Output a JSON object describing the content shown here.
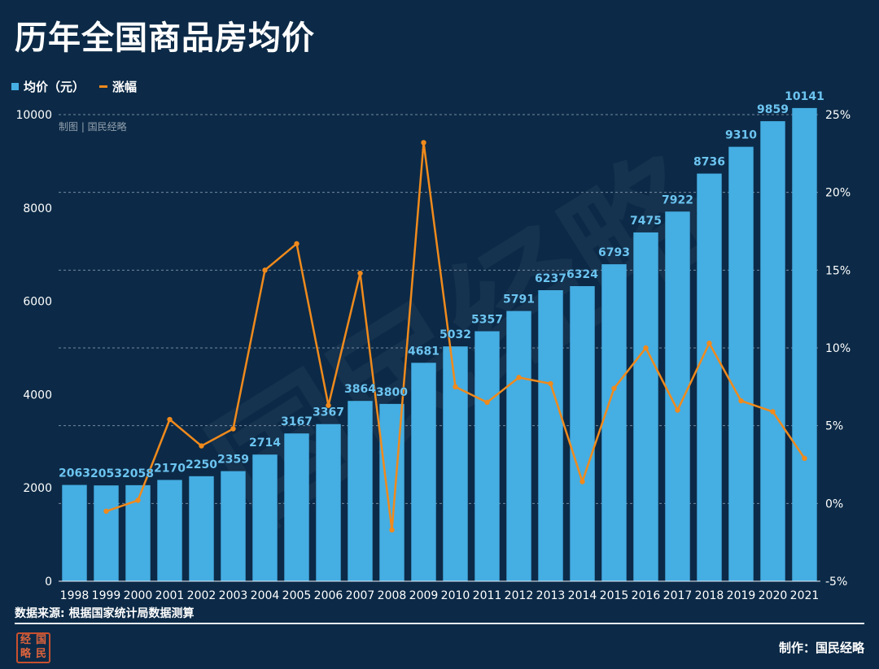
{
  "title": "历年全国商品房均价",
  "legend": {
    "bar_label": "均价（元）",
    "line_label": "涨幅"
  },
  "source": "数据来源: 根据国家统计局数据测算",
  "credit": "制作：国民经略",
  "chart_watermark": "制图 | 国民经略",
  "logo_seal": [
    "经",
    "国",
    "略",
    "民"
  ],
  "colors": {
    "background": "#0c2a47",
    "bar": "#45aee3",
    "line": "#f08a1c",
    "label": "#6cc4f0"
  },
  "chart_data": {
    "type": "bar",
    "categories": [
      "1998",
      "1999",
      "2000",
      "2001",
      "2002",
      "2003",
      "2004",
      "2005",
      "2006",
      "2007",
      "2008",
      "2009",
      "2010",
      "2011",
      "2012",
      "2013",
      "2014",
      "2015",
      "2016",
      "2017",
      "2018",
      "2019",
      "2020",
      "2021"
    ],
    "series": [
      {
        "name": "均价（元）",
        "type": "bar",
        "axis": "left",
        "values": [
          2063,
          2053,
          2058,
          2170,
          2250,
          2359,
          2714,
          3167,
          3367,
          3864,
          3800,
          4681,
          5032,
          5357,
          5791,
          6237,
          6324,
          6793,
          7475,
          7922,
          8736,
          9310,
          9859,
          10141
        ]
      },
      {
        "name": "涨幅",
        "type": "line",
        "axis": "right",
        "values": [
          null,
          -0.5,
          0.2,
          5.4,
          3.7,
          4.8,
          15.0,
          16.7,
          6.3,
          14.8,
          -1.7,
          23.2,
          7.5,
          6.5,
          8.1,
          7.7,
          1.4,
          7.4,
          10.0,
          6.0,
          10.3,
          6.6,
          5.9,
          2.9
        ]
      }
    ],
    "y_left": {
      "ylim": [
        0,
        10000
      ],
      "ticks": [
        0,
        2000,
        4000,
        6000,
        8000,
        10000
      ]
    },
    "y_right": {
      "ylim": [
        -5,
        25
      ],
      "ticks": [
        "-5%",
        "0%",
        "5%",
        "10%",
        "15%",
        "20%",
        "25%"
      ]
    },
    "grid": "dashed-horizontal",
    "legend_position": "top-left"
  }
}
